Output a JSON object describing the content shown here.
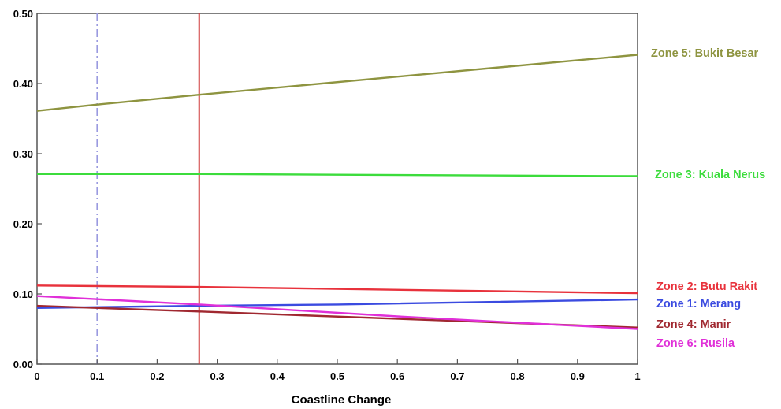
{
  "chart_data": {
    "type": "line",
    "title": "",
    "xlabel": "Coastline Change",
    "ylabel": "",
    "xlim": [
      0,
      1
    ],
    "ylim": [
      0,
      0.5
    ],
    "x_ticks": [
      "0",
      "0.1",
      "0.2",
      "0.3",
      "0.4",
      "0.5",
      "0.6",
      "0.7",
      "0.8",
      "0.9",
      "1"
    ],
    "y_ticks": [
      "0.00",
      "0.10",
      "0.20",
      "0.30",
      "0.40",
      "0.50"
    ],
    "grid": false,
    "legend_position": "right",
    "reference_lines": [
      {
        "x": 0.1,
        "style": "dash-dot",
        "color": "#9a9ae0"
      },
      {
        "x": 0.27,
        "style": "solid",
        "color": "#d03a3a"
      }
    ],
    "series": [
      {
        "name": "Zone 5: Bukit Besar",
        "color": "#8e9440",
        "x": [
          0,
          0.1,
          0.27,
          1
        ],
        "y": [
          0.361,
          0.37,
          0.384,
          0.441
        ]
      },
      {
        "name": "Zone 3: Kuala Nerus",
        "color": "#3cdc3c",
        "x": [
          0,
          0.27,
          0.5,
          1
        ],
        "y": [
          0.271,
          0.271,
          0.27,
          0.268
        ]
      },
      {
        "name": "Zone 2: Butu Rakit",
        "color": "#e8323c",
        "x": [
          0,
          0.27,
          1
        ],
        "y": [
          0.112,
          0.11,
          0.101
        ]
      },
      {
        "name": "Zone 1: Merang",
        "color": "#3b4be0",
        "x": [
          0,
          0.27,
          0.5,
          1
        ],
        "y": [
          0.08,
          0.083,
          0.085,
          0.092
        ]
      },
      {
        "name": "Zone 4: Manir",
        "color": "#a02830",
        "x": [
          0,
          0.27,
          1
        ],
        "y": [
          0.083,
          0.075,
          0.052
        ]
      },
      {
        "name": "Zone 6: Rusila",
        "color": "#e030d8",
        "x": [
          0,
          0.27,
          0.6,
          1
        ],
        "y": [
          0.097,
          0.085,
          0.068,
          0.05
        ]
      }
    ]
  }
}
